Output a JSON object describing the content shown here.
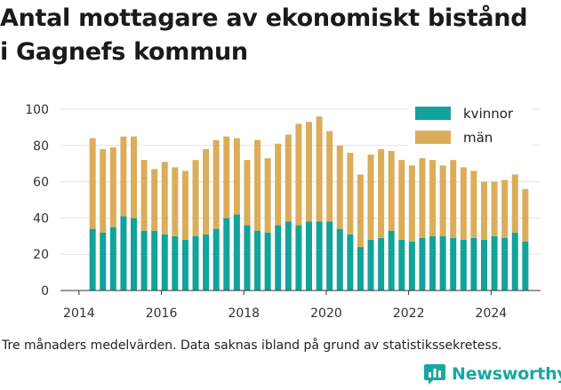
{
  "colors": {
    "women": "#12a39a",
    "men": "#dbad5b",
    "brand": "#18a7a0",
    "grid": "#e4e4e4"
  },
  "chart_data": {
    "type": "bar",
    "stacked": true,
    "title_lines": [
      "Antal mottagare av ekonomiskt bistånd",
      "i Gagnefs kommun"
    ],
    "xlabel": "",
    "ylabel": "",
    "ylim": [
      0,
      100
    ],
    "yticks": [
      0,
      20,
      40,
      60,
      80,
      100
    ],
    "xticks": [
      {
        "label": "2014",
        "value": 2014
      },
      {
        "label": "2016",
        "value": 2016
      },
      {
        "label": "2018",
        "value": 2018
      },
      {
        "label": "2020",
        "value": 2020
      },
      {
        "label": "2022",
        "value": 2022
      },
      {
        "label": "2024",
        "value": 2024
      }
    ],
    "grid": "horizontal",
    "legend_position": "top-right",
    "x": [
      2014.33,
      2014.58,
      2014.83,
      2015.08,
      2015.33,
      2015.58,
      2015.83,
      2016.08,
      2016.33,
      2016.58,
      2016.83,
      2017.08,
      2017.33,
      2017.58,
      2017.83,
      2018.08,
      2018.33,
      2018.58,
      2018.83,
      2019.08,
      2019.33,
      2019.58,
      2019.83,
      2020.08,
      2020.33,
      2020.58,
      2020.83,
      2021.08,
      2021.33,
      2021.58,
      2021.83,
      2022.08,
      2022.33,
      2022.58,
      2022.83,
      2023.08,
      2023.33,
      2023.58,
      2023.83,
      2024.08,
      2024.33,
      2024.58,
      2024.83
    ],
    "series": [
      {
        "name": "kvinnor",
        "values": [
          34,
          32,
          35,
          41,
          40,
          33,
          33,
          31,
          30,
          28,
          30,
          31,
          34,
          40,
          42,
          36,
          33,
          32,
          36,
          38,
          36,
          38,
          38,
          38,
          34,
          31,
          24,
          28,
          29,
          33,
          28,
          27,
          29,
          30,
          30,
          29,
          28,
          29,
          28,
          30,
          29,
          32,
          27
        ]
      },
      {
        "name": "män",
        "values": [
          50,
          46,
          44,
          44,
          45,
          39,
          34,
          40,
          38,
          38,
          42,
          47,
          49,
          45,
          42,
          36,
          50,
          41,
          45,
          48,
          56,
          55,
          58,
          50,
          46,
          45,
          40,
          47,
          49,
          44,
          44,
          42,
          44,
          42,
          39,
          43,
          40,
          37,
          32,
          30,
          32,
          32,
          29
        ]
      }
    ]
  },
  "footnote": "Tre månaders medelvärden. Data saknas ibland på grund av statistikssekretess.",
  "brand": {
    "name": "Newsworthy",
    "icon": "bar-chart-logo-icon"
  }
}
